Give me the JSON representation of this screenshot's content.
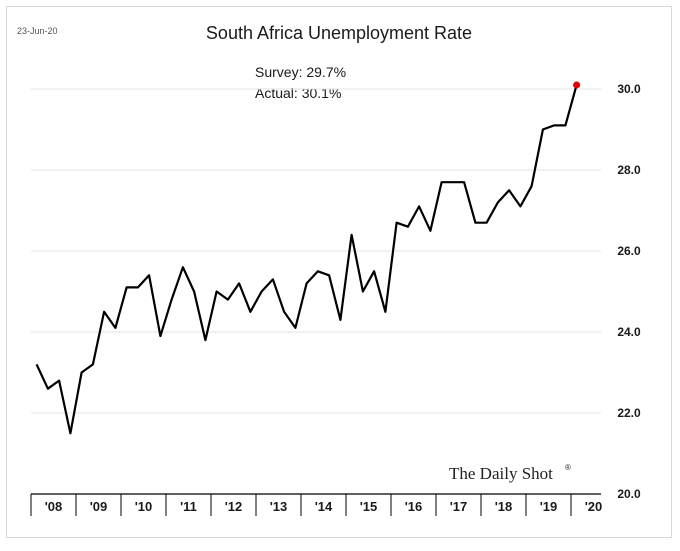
{
  "date_stamp": "23-Jun-20",
  "watermark": "The Daily Shot",
  "watermark_mark": "®",
  "chart_data": {
    "type": "line",
    "title": "South Africa Unemployment Rate",
    "annotations": [
      "Survey: 29.7%",
      "Actual: 30.1%"
    ],
    "xlabel": "",
    "ylabel": "",
    "ylim": [
      20.0,
      30.0
    ],
    "yticks": [
      "20.0",
      "22.0",
      "24.0",
      "26.0",
      "28.0",
      "30.0"
    ],
    "xticks": [
      "'08",
      "'09",
      "'10",
      "'11",
      "'12",
      "'13",
      "'14",
      "'15",
      "'16",
      "'17",
      "'18",
      "'19",
      "'20"
    ],
    "grid": true,
    "axis_side": "right",
    "highlight_last_point_color": "#e00000",
    "line_color": "#000000",
    "series": [
      {
        "x": [
          "2008Q1",
          "2008Q2",
          "2008Q3",
          "2008Q4",
          "2009Q1",
          "2009Q2",
          "2009Q3",
          "2009Q4",
          "2010Q1",
          "2010Q2",
          "2010Q3",
          "2010Q4",
          "2011Q1",
          "2011Q2",
          "2011Q3",
          "2011Q4",
          "2012Q1",
          "2012Q2",
          "2012Q3",
          "2012Q4",
          "2013Q1",
          "2013Q2",
          "2013Q3",
          "2013Q4",
          "2014Q1",
          "2014Q2",
          "2014Q3",
          "2014Q4",
          "2015Q1",
          "2015Q2",
          "2015Q3",
          "2015Q4",
          "2016Q1",
          "2016Q2",
          "2016Q3",
          "2016Q4",
          "2017Q1",
          "2017Q2",
          "2017Q3",
          "2017Q4",
          "2018Q1",
          "2018Q2",
          "2018Q3",
          "2018Q4",
          "2019Q1",
          "2019Q2",
          "2019Q3",
          "2019Q4",
          "2020Q1"
        ],
        "values": [
          23.2,
          22.6,
          22.8,
          21.5,
          23.0,
          23.2,
          24.5,
          24.1,
          25.1,
          25.1,
          25.4,
          23.9,
          24.8,
          25.6,
          25.0,
          23.8,
          25.0,
          24.8,
          25.2,
          24.5,
          25.0,
          25.3,
          24.5,
          24.1,
          25.2,
          25.5,
          25.4,
          24.3,
          26.4,
          25.0,
          25.5,
          24.5,
          26.7,
          26.6,
          27.1,
          26.5,
          27.7,
          27.7,
          27.7,
          26.7,
          26.7,
          27.2,
          27.5,
          27.1,
          27.6,
          29.0,
          29.1,
          29.1,
          30.1
        ]
      }
    ]
  }
}
